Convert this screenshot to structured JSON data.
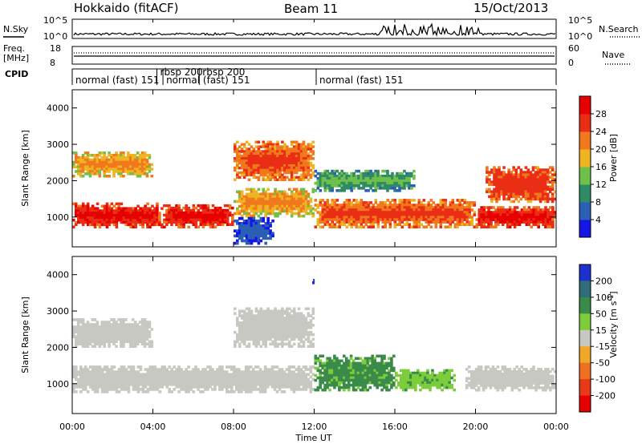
{
  "header": {
    "station": "Hokkaido (fitACF)",
    "beam": "Beam 11",
    "date": "15/Oct/2013"
  },
  "top_panels": {
    "nsky_label": "N.Sky",
    "nsearch_label": "N.Search",
    "noise_ticks": [
      "10^5",
      "10^0"
    ],
    "freq_label": "Freq.",
    "freq_unit": "[MHz]",
    "freq_ticks": [
      "18",
      "8"
    ],
    "nave_label": "Nave",
    "nave_ticks": [
      "60",
      "0"
    ],
    "cpid_label": "CPID",
    "cpid_segments": [
      {
        "label": "normal (fast) 151",
        "start_hour": 0.0
      },
      {
        "label": "rbsp 200",
        "start_hour": 4.2
      },
      {
        "label": "normal (fast) 151",
        "start_hour": 4.5
      },
      {
        "label": "rbsp 200",
        "start_hour": 6.3
      },
      {
        "label": "normal (fast) 151",
        "start_hour": 12.1
      }
    ]
  },
  "chart_data": [
    {
      "type": "heatmap",
      "name": "Power",
      "ylabel": "Slant Range [km]",
      "xlabel": "Time UT",
      "xlim": [
        0,
        24
      ],
      "ylim": [
        180,
        4500
      ],
      "x_ticks": [
        "00:00",
        "04:00",
        "08:00",
        "12:00",
        "16:00",
        "20:00",
        "00:00"
      ],
      "y_ticks": [
        1000,
        2000,
        3000,
        4000
      ],
      "colorbar": {
        "label": "Power [dB]",
        "ticks": [
          4,
          8,
          12,
          16,
          20,
          24,
          28
        ],
        "colors": [
          "#1515e6",
          "#2b5fb5",
          "#2f8a66",
          "#6fbf4b",
          "#eeb522",
          "#f1781c",
          "#ea2e16",
          "#e60000"
        ]
      },
      "echo_regions": [
        {
          "t": [
            0,
            4.5
          ],
          "range": [
            700,
            1400
          ],
          "power_db": 30
        },
        {
          "t": [
            4.5,
            8
          ],
          "range": [
            700,
            1350
          ],
          "power_db": 30
        },
        {
          "t": [
            8,
            12
          ],
          "range": [
            1000,
            1800
          ],
          "power_db": 22
        },
        {
          "t": [
            12,
            20
          ],
          "range": [
            700,
            1500
          ],
          "power_db": 26
        },
        {
          "t": [
            20,
            24
          ],
          "range": [
            700,
            1300
          ],
          "power_db": 30
        },
        {
          "t": [
            0,
            4
          ],
          "range": [
            2100,
            2800
          ],
          "power_db": 22
        },
        {
          "t": [
            8,
            12
          ],
          "range": [
            2000,
            3100
          ],
          "power_db": 26
        },
        {
          "t": [
            20.5,
            24
          ],
          "range": [
            1400,
            2400
          ],
          "power_db": 28
        },
        {
          "t": [
            12,
            17
          ],
          "range": [
            1700,
            2300
          ],
          "power_db": 14
        },
        {
          "t": [
            8,
            10
          ],
          "range": [
            250,
            1000
          ],
          "power_db": 8
        }
      ]
    },
    {
      "type": "heatmap",
      "name": "Velocity",
      "ylabel": "Slant Range [km]",
      "xlabel": "Time UT",
      "xlim": [
        0,
        24
      ],
      "ylim": [
        180,
        4500
      ],
      "x_ticks": [
        "00:00",
        "04:00",
        "08:00",
        "12:00",
        "16:00",
        "20:00",
        "00:00"
      ],
      "y_ticks": [
        1000,
        2000,
        3000,
        4000
      ],
      "colorbar": {
        "label": "Velocity [m s-1]",
        "ticks": [
          200,
          100,
          50,
          15,
          -15,
          -50,
          -100,
          -200
        ],
        "colors": [
          "#1d2fcf",
          "#2f6d78",
          "#3a8a4a",
          "#7ccc3c",
          "#c8c8c3",
          "#f0a828",
          "#f07022",
          "#e83a18",
          "#e60000"
        ]
      },
      "echo_regions": [
        {
          "t": [
            0,
            12
          ],
          "range": [
            750,
            1500
          ],
          "velocity": 0,
          "ground_scatter": true
        },
        {
          "t": [
            0,
            4
          ],
          "range": [
            2000,
            2800
          ],
          "velocity": 0,
          "ground_scatter": true
        },
        {
          "t": [
            8,
            12
          ],
          "range": [
            2000,
            3100
          ],
          "velocity": 0,
          "ground_scatter": true
        },
        {
          "t": [
            12,
            16
          ],
          "range": [
            800,
            1800
          ],
          "velocity": 60
        },
        {
          "t": [
            16,
            19
          ],
          "range": [
            800,
            1400
          ],
          "velocity": 40
        },
        {
          "t": [
            19.5,
            24
          ],
          "range": [
            800,
            1500
          ],
          "velocity": 0,
          "ground_scatter": true
        },
        {
          "t": [
            11.9,
            12.0
          ],
          "range": [
            3750,
            3950
          ],
          "velocity": 200
        }
      ]
    }
  ]
}
